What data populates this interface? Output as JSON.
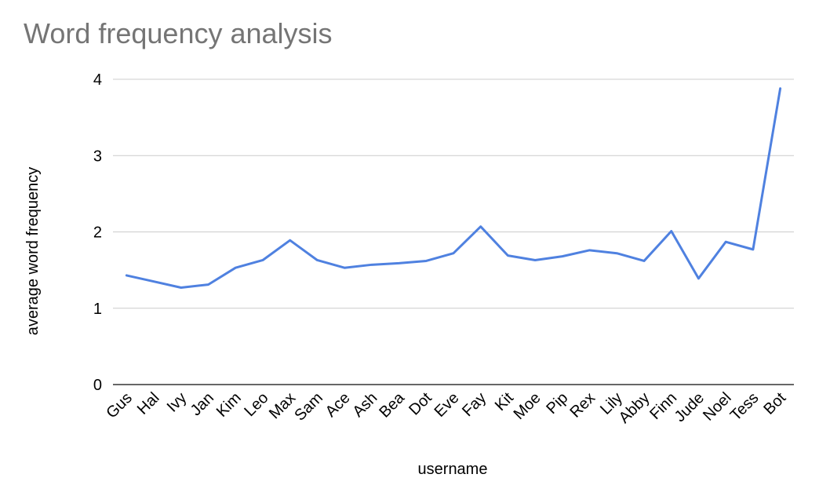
{
  "chart_data": {
    "type": "line",
    "title": "Word frequency analysis",
    "xlabel": "username",
    "ylabel": "average word frequency",
    "categories": [
      "Gus",
      "Hal",
      "Ivy",
      "Jan",
      "Kim",
      "Leo",
      "Max",
      "Sam",
      "Ace",
      "Ash",
      "Bea",
      "Dot",
      "Eve",
      "Fay",
      "Kit",
      "Moe",
      "Pip",
      "Rex",
      "Lily",
      "Abby",
      "Finn",
      "Jude",
      "Noel",
      "Tess",
      "Bot"
    ],
    "series": [
      {
        "values": [
          1.43,
          1.35,
          1.27,
          1.31,
          1.53,
          1.63,
          1.89,
          1.63,
          1.53,
          1.57,
          1.59,
          1.62,
          1.72,
          2.07,
          1.69,
          1.63,
          1.68,
          1.76,
          1.72,
          1.62,
          2.01,
          1.39,
          1.87,
          1.77,
          3.88
        ],
        "color": "#4f81e0"
      }
    ],
    "ylim": [
      0,
      4
    ],
    "yticks": [
      0,
      1,
      2,
      3,
      4
    ],
    "grid": true,
    "legend": "none"
  }
}
